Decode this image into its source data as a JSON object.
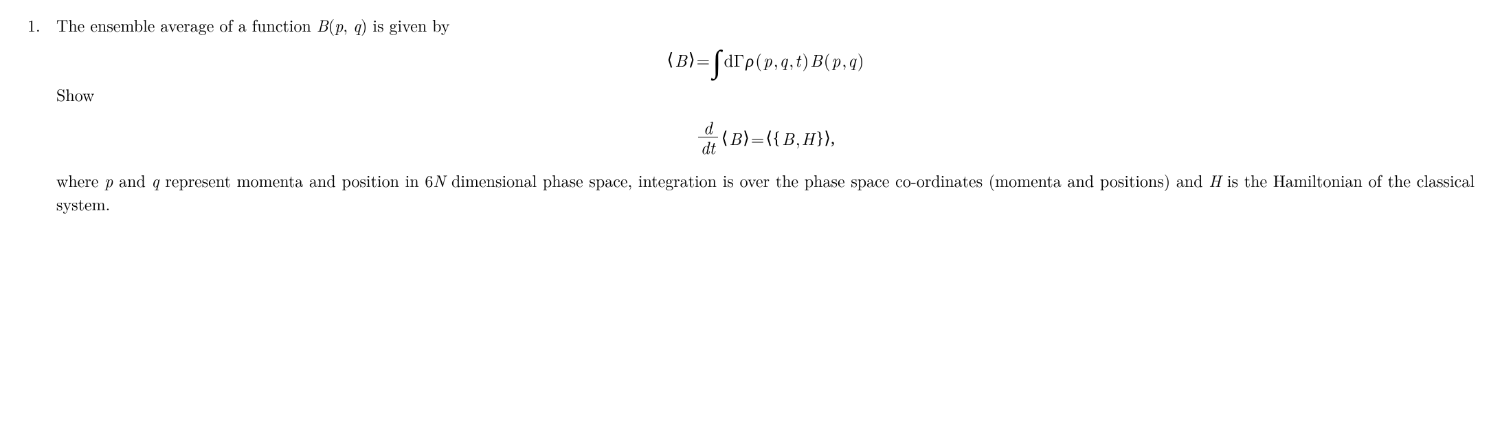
{
  "number": "1.",
  "intro_pre": "The ensemble average of a function ",
  "func": "B",
  "args_open": "(",
  "p": "p",
  "comma": ", ",
  "q": "q",
  "args_close": ")",
  "intro_post": " is given by",
  "eq1": {
    "lhs_open": "⟨",
    "lhs_B": "B",
    "lhs_close": "⟩",
    "equals": " = ",
    "dGamma": "dΓ ",
    "rho": "ρ",
    "rho_args_open": "(",
    "rho_p": "p",
    "rho_c1": ", ",
    "rho_q": "q",
    "rho_c2": ", ",
    "rho_t": "t",
    "rho_args_close": ") ",
    "B": "B",
    "B_args_open": "(",
    "B_p": "p",
    "B_c": ", ",
    "B_q": "q",
    "B_args_close": ")"
  },
  "show": "Show",
  "eq2": {
    "d_num": "d",
    "d_den": "dt",
    "lhs_open": "⟨",
    "lhs_B": "B",
    "lhs_close": "⟩",
    "equals": " = ",
    "rhs_open": "⟨{",
    "rhs_B": "B",
    "rhs_c": ", ",
    "rhs_H": "H",
    "rhs_close": "}⟩,"
  },
  "tail_1": "where ",
  "tail_p": "p",
  "tail_2": " and ",
  "tail_q": "q",
  "tail_3": " represent momenta and position in 6",
  "tail_N": "N",
  "tail_4": " dimensional phase space, integration is over the phase space co-ordinates (momenta and positions) and ",
  "tail_H": "H",
  "tail_5": " is the Hamiltonian of the classical system."
}
